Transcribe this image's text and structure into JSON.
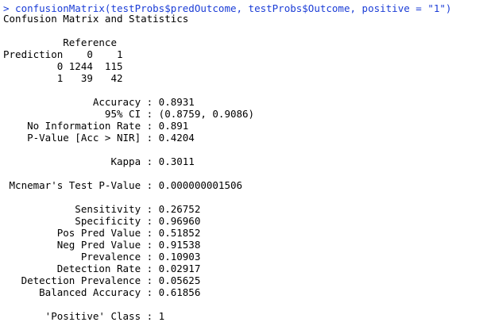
{
  "colors": {
    "background": "#ffffff",
    "command_text": "#1a3cd6",
    "output_text": "#000000"
  },
  "console": {
    "command": "> confusionMatrix(testProbs$predOutcome, testProbs$Outcome, positive = \"1\")",
    "output_lines": [
      "Confusion Matrix and Statistics",
      "",
      "          Reference",
      "Prediction    0    1",
      "         0 1244  115",
      "         1   39   42",
      "",
      "               Accuracy : 0.8931",
      "                 95% CI : (0.8759, 0.9086)",
      "    No Information Rate : 0.891",
      "    P-Value [Acc > NIR] : 0.4204",
      "",
      "                  Kappa : 0.3011",
      "",
      " Mcnemar's Test P-Value : 0.000000001506",
      "",
      "            Sensitivity : 0.26752",
      "            Specificity : 0.96960",
      "         Pos Pred Value : 0.51852",
      "         Neg Pred Value : 0.91538",
      "             Prevalence : 0.10903",
      "         Detection Rate : 0.02917",
      "   Detection Prevalence : 0.05625",
      "      Balanced Accuracy : 0.61856",
      "",
      "       'Positive' Class : 1"
    ]
  }
}
